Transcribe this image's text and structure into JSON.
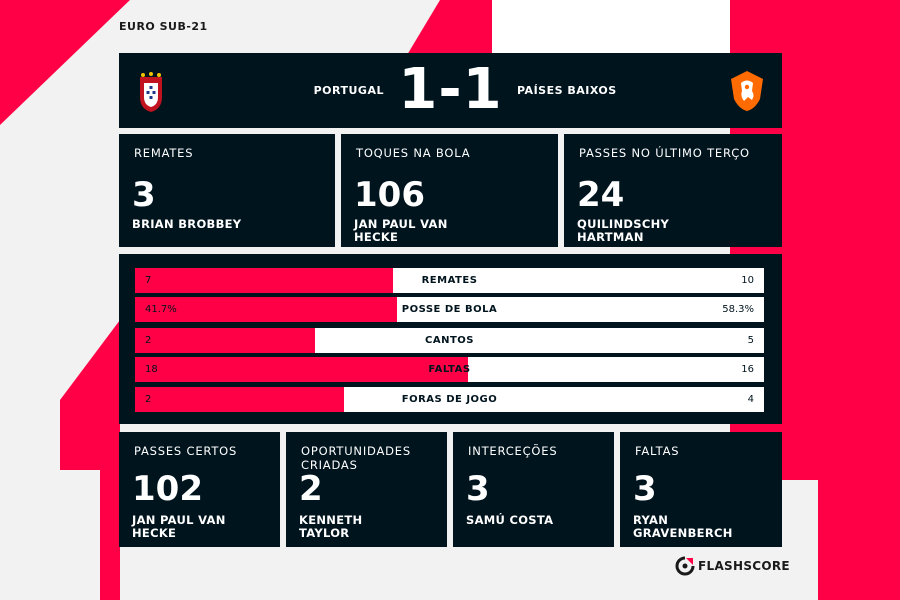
{
  "competition": "EURO SUB-21",
  "colors": {
    "accent": "#ff0046",
    "panel": "#00141e",
    "background": "#f2f2f2"
  },
  "match": {
    "home": {
      "name": "PORTUGAL",
      "crest_icon": "portugal-crest-icon"
    },
    "away": {
      "name": "PAÍSES BAIXOS",
      "crest_icon": "netherlands-lion-crest-icon"
    },
    "score": "1-1"
  },
  "top_stats": [
    {
      "label": "REMATES",
      "value": "3",
      "player": "BRIAN BROBBEY"
    },
    {
      "label": "TOQUES NA BOLA",
      "value": "106",
      "player": "JAN PAUL VAN HECKE"
    },
    {
      "label": "PASSES NO ÚLTIMO TERÇO",
      "value": "24",
      "player": "QUILINDSCHY HARTMAN"
    }
  ],
  "comparison": [
    {
      "label": "REMATES",
      "home": "7",
      "away": "10",
      "home_share": 0.41
    },
    {
      "label": "POSSE DE BOLA",
      "home": "41.7%",
      "away": "58.3%",
      "home_share": 0.417
    },
    {
      "label": "CANTOS",
      "home": "2",
      "away": "5",
      "home_share": 0.286
    },
    {
      "label": "FALTAS",
      "home": "18",
      "away": "16",
      "home_share": 0.53
    },
    {
      "label": "FORAS DE JOGO",
      "home": "2",
      "away": "4",
      "home_share": 0.333
    }
  ],
  "bottom_stats": [
    {
      "label": "PASSES CERTOS",
      "value": "102",
      "player": "JAN PAUL VAN HECKE"
    },
    {
      "label": "OPORTUNIDADES CRIADAS",
      "value": "2",
      "player": "KENNETH TAYLOR"
    },
    {
      "label": "INTERCEÇÕES",
      "value": "3",
      "player": "SAMÚ COSTA"
    },
    {
      "label": "FALTAS",
      "value": "3",
      "player": "RYAN GRAVENBERCH"
    }
  ],
  "brand": {
    "name": "FLASHSCORE",
    "icon": "flashscore-logo-icon"
  }
}
